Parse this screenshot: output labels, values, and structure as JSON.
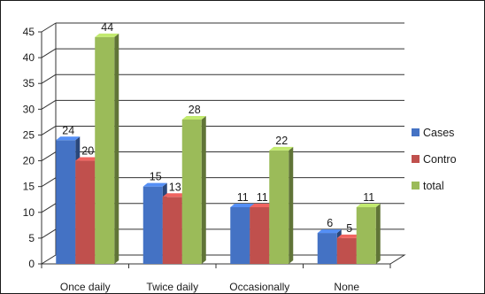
{
  "chart_data": {
    "type": "bar",
    "title": "",
    "xlabel": "",
    "ylabel": "",
    "categories": [
      "Once daily",
      "Twice daily",
      "Occasionally",
      "None"
    ],
    "series": [
      {
        "name": "Cases",
        "values": [
          24,
          15,
          11,
          6
        ],
        "color": "#4472c4"
      },
      {
        "name": "Contro",
        "values": [
          20,
          13,
          11,
          5
        ],
        "color": "#c0504d"
      },
      {
        "name": "total",
        "values": [
          44,
          28,
          22,
          11
        ],
        "color": "#9bbb59"
      }
    ],
    "yticks": [
      0,
      5,
      10,
      15,
      20,
      25,
      30,
      35,
      40,
      45
    ],
    "ylim": [
      0,
      45
    ],
    "grid": true,
    "legend_position": "right",
    "style": "3d-clustered-column"
  }
}
